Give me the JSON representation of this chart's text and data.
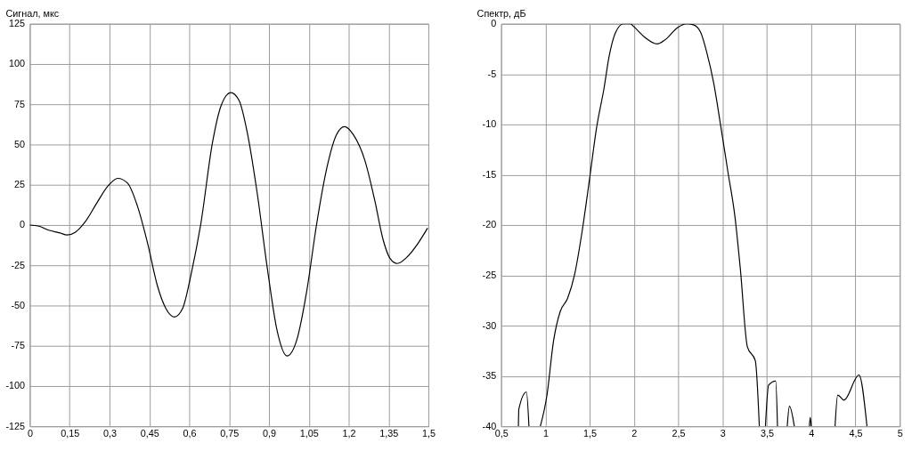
{
  "chart_data": [
    {
      "type": "line",
      "ylabel": "Сигнал, мкс",
      "xlim": [
        0,
        1.5
      ],
      "ylim": [
        -125,
        125
      ],
      "grid": true,
      "xticks": [
        0,
        {
          "value": 0.15,
          "label": "0,15"
        },
        {
          "value": 0.3,
          "label": "0,3"
        },
        {
          "value": 0.45,
          "label": "0,45"
        },
        {
          "value": 0.6,
          "label": "0,6"
        },
        {
          "value": 0.75,
          "label": "0,75"
        },
        {
          "value": 0.9,
          "label": "0,9"
        },
        {
          "value": 1.05,
          "label": "1,05"
        },
        {
          "value": 1.2,
          "label": "1,2"
        },
        {
          "value": 1.35,
          "label": "1,35"
        },
        {
          "value": 1.5,
          "label": "1,5"
        }
      ],
      "yticks": [
        -125,
        -100,
        -75,
        -50,
        -25,
        0,
        25,
        50,
        75,
        100,
        125
      ],
      "x": [
        0,
        0.034,
        0.071,
        0.114,
        0.14,
        0.172,
        0.209,
        0.252,
        0.294,
        0.331,
        0.368,
        0.405,
        0.443,
        0.48,
        0.512,
        0.544,
        0.575,
        0.607,
        0.644,
        0.687,
        0.719,
        0.756,
        0.788,
        0.818,
        0.855,
        0.894,
        0.931,
        0.968,
        1.005,
        1.042,
        1.08,
        1.117,
        1.154,
        1.184,
        1.218,
        1.261,
        1.298,
        1.33,
        1.356,
        1.383,
        1.419,
        1.462,
        1.497
      ],
      "series": [
        {
          "color": "#000000",
          "values": [
            0,
            -0.7,
            -3.2,
            -4.9,
            -6.2,
            -4.4,
            2.1,
            13.6,
            24.2,
            29,
            26,
            11.8,
            -11.1,
            -37.6,
            -51.8,
            -57.1,
            -51.8,
            -30.6,
            1.2,
            50.7,
            73.7,
            82.2,
            77.2,
            57.8,
            20.7,
            -27,
            -65.9,
            -81.3,
            -71.2,
            -41.2,
            1.2,
            34.8,
            56,
            61.1,
            56,
            40.1,
            15.4,
            -9.4,
            -20.8,
            -23.9,
            -20,
            -11.1,
            -1.9
          ]
        }
      ]
    },
    {
      "type": "line",
      "ylabel": "Спектр, дБ",
      "xlim": [
        0.5,
        5
      ],
      "ylim": [
        -40,
        0
      ],
      "grid": true,
      "xticks": [
        {
          "value": 0.5,
          "label": "0,5"
        },
        1,
        {
          "value": 1.5,
          "label": "1,5"
        },
        2,
        {
          "value": 2.5,
          "label": "2,5"
        },
        3,
        {
          "value": 3.5,
          "label": "3,5"
        },
        4,
        {
          "value": 4.5,
          "label": "4,5"
        },
        5
      ],
      "yticks": [
        -40,
        -35,
        -30,
        -25,
        -20,
        -15,
        -10,
        -5,
        0
      ],
      "x": [
        0.695,
        0.7,
        0.786,
        0.814,
        0.88,
        0.943,
        1.016,
        1.094,
        1.167,
        1.25,
        1.33,
        1.415,
        1.494,
        1.58,
        1.66,
        1.72,
        1.79,
        1.88,
        1.96,
        2.0,
        2.13,
        2.26,
        2.35,
        2.49,
        2.59,
        2.67,
        2.75,
        2.82,
        2.9,
        2.98,
        3.06,
        3.14,
        3.2,
        3.28,
        3.37,
        3.415,
        3.45,
        3.484,
        3.52,
        3.6,
        3.62,
        3.68,
        3.73,
        3.755,
        3.81,
        3.9,
        3.98,
        3.99,
        4.0,
        4.1,
        4.27,
        4.3,
        4.37,
        4.54,
        4.63
      ],
      "series": [
        {
          "color": "#000000",
          "values": [
            -40,
            -38.3,
            -36.6,
            -40,
            null,
            -40,
            -37,
            -31.4,
            -28.6,
            -27.3,
            -24.9,
            -20.6,
            -15.7,
            -10.2,
            -6.5,
            -3.2,
            -0.9,
            0,
            0,
            -0.3,
            -1.4,
            -2.0,
            -1.6,
            -0.4,
            0,
            -0.1,
            -0.8,
            -2.8,
            -5.9,
            -10.2,
            -14.7,
            -19.2,
            -24.3,
            -32.1,
            -33.5,
            -40,
            null,
            -40,
            -35.9,
            -35.5,
            -40,
            null,
            -40,
            -38,
            -40,
            null,
            -40,
            -39.1,
            -40,
            null,
            -40,
            -36.9,
            -37.4,
            -34.9,
            -40
          ]
        }
      ]
    }
  ]
}
